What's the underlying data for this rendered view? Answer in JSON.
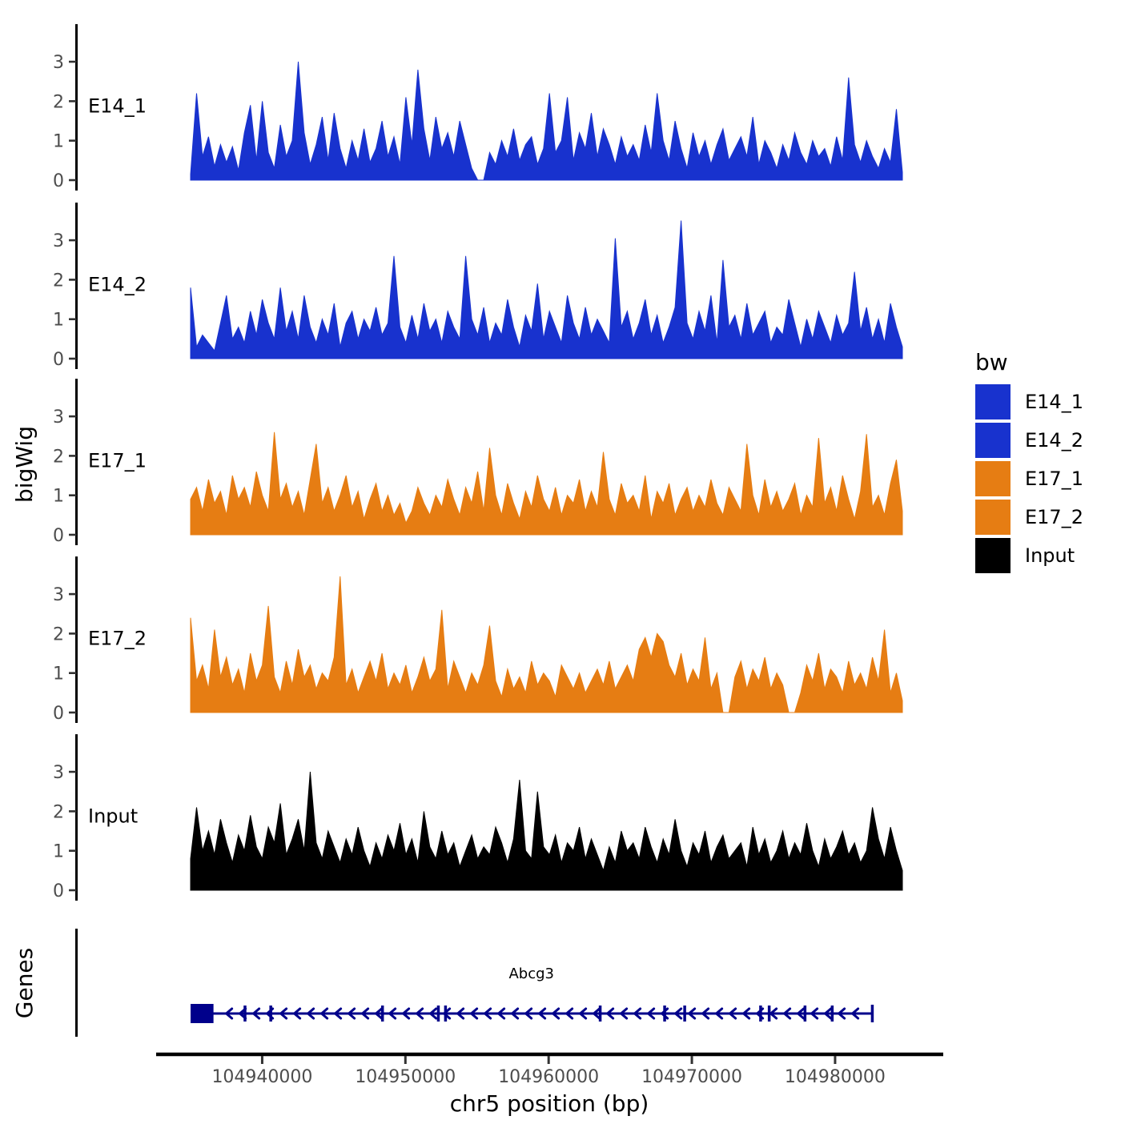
{
  "chart_data": {
    "type": "area",
    "description": "bigWig coverage tracks over genomic interval with gene model",
    "xlabel": "chr5 position (bp)",
    "ylabel": "bigWig",
    "x_range": [
      104935000,
      104984700
    ],
    "x_ticks": [
      104940000,
      104950000,
      104960000,
      104970000,
      104980000
    ],
    "x_tick_labels": [
      "104940000",
      "104950000",
      "104960000",
      "104970000",
      "104980000"
    ],
    "y_ticks": [
      0,
      1,
      2,
      3
    ],
    "ylim": [
      0,
      3.6
    ],
    "axis_text_color": "#4D4D4D",
    "axis_line_color": "#000000",
    "tracks": [
      {
        "name": "E14_1",
        "color": "#1832CE",
        "values": [
          0.15,
          2.2,
          0.6,
          1.1,
          0.35,
          0.9,
          0.45,
          0.85,
          0.25,
          1.2,
          1.9,
          0.5,
          2.0,
          0.7,
          0.3,
          1.4,
          0.6,
          1.0,
          3.0,
          1.2,
          0.4,
          0.9,
          1.6,
          0.5,
          1.7,
          0.8,
          0.3,
          1.0,
          0.5,
          1.3,
          0.45,
          0.8,
          1.5,
          0.6,
          1.1,
          0.4,
          2.1,
          0.9,
          2.8,
          1.3,
          0.5,
          1.6,
          0.8,
          1.2,
          0.6,
          1.5,
          0.9,
          0.3,
          0.0,
          0.0,
          0.7,
          0.4,
          1.0,
          0.6,
          1.3,
          0.5,
          0.9,
          1.1,
          0.4,
          0.8,
          2.2,
          0.7,
          1.0,
          2.1,
          0.5,
          1.2,
          0.8,
          1.7,
          0.6,
          1.3,
          0.9,
          0.4,
          1.1,
          0.6,
          0.9,
          0.5,
          1.4,
          0.7,
          2.2,
          1.0,
          0.5,
          1.5,
          0.8,
          0.3,
          1.2,
          0.6,
          1.0,
          0.4,
          0.9,
          1.3,
          0.5,
          0.8,
          1.1,
          0.6,
          1.6,
          0.4,
          1.0,
          0.7,
          0.3,
          0.9,
          0.5,
          1.2,
          0.7,
          0.4,
          1.0,
          0.6,
          0.8,
          0.35,
          1.1,
          0.5,
          2.6,
          0.9,
          0.45,
          1.0,
          0.6,
          0.3,
          0.8,
          0.45,
          1.8,
          0.2
        ]
      },
      {
        "name": "E14_2",
        "color": "#1832CE",
        "values": [
          1.8,
          0.3,
          0.6,
          0.4,
          0.2,
          0.9,
          1.6,
          0.5,
          0.8,
          0.4,
          1.2,
          0.6,
          1.5,
          0.9,
          0.5,
          1.8,
          0.7,
          1.2,
          0.5,
          1.6,
          0.8,
          0.4,
          1.0,
          0.6,
          1.4,
          0.3,
          0.9,
          1.2,
          0.5,
          1.0,
          0.7,
          1.3,
          0.6,
          0.9,
          2.6,
          0.8,
          0.4,
          1.1,
          0.5,
          1.4,
          0.7,
          1.0,
          0.4,
          1.2,
          0.8,
          0.5,
          2.6,
          1.0,
          0.6,
          1.3,
          0.4,
          0.9,
          0.6,
          1.5,
          0.8,
          0.3,
          1.1,
          0.7,
          1.9,
          0.5,
          1.2,
          0.8,
          0.4,
          1.6,
          0.9,
          0.5,
          1.3,
          0.6,
          1.0,
          0.7,
          0.4,
          3.05,
          0.8,
          1.2,
          0.5,
          0.9,
          1.5,
          0.6,
          1.1,
          0.4,
          0.8,
          1.3,
          3.5,
          0.9,
          0.5,
          1.2,
          0.7,
          1.6,
          0.4,
          2.5,
          0.8,
          1.1,
          0.5,
          1.4,
          0.6,
          0.9,
          1.2,
          0.4,
          0.8,
          0.6,
          1.5,
          0.9,
          0.3,
          1.0,
          0.5,
          1.2,
          0.8,
          0.4,
          1.1,
          0.6,
          0.9,
          2.2,
          0.7,
          1.3,
          0.5,
          1.0,
          0.4,
          1.4,
          0.8,
          0.3
        ]
      },
      {
        "name": "E17_1",
        "color": "#E67D13",
        "values": [
          0.9,
          1.2,
          0.6,
          1.4,
          0.8,
          1.1,
          0.5,
          1.5,
          0.9,
          1.2,
          0.7,
          1.6,
          1.0,
          0.6,
          2.6,
          0.9,
          1.3,
          0.7,
          1.1,
          0.5,
          1.4,
          2.3,
          0.8,
          1.2,
          0.6,
          1.0,
          1.5,
          0.7,
          1.1,
          0.4,
          0.9,
          1.3,
          0.6,
          1.0,
          0.5,
          0.8,
          0.3,
          0.6,
          1.2,
          0.8,
          0.5,
          1.0,
          0.7,
          1.4,
          0.9,
          0.5,
          1.2,
          0.8,
          1.6,
          0.6,
          2.2,
          1.0,
          0.5,
          1.3,
          0.8,
          0.4,
          1.1,
          0.7,
          1.5,
          0.9,
          0.6,
          1.2,
          0.5,
          1.0,
          0.8,
          1.4,
          0.6,
          1.1,
          0.7,
          2.1,
          0.9,
          0.5,
          1.3,
          0.8,
          1.0,
          0.6,
          1.5,
          0.4,
          1.1,
          0.8,
          1.3,
          0.5,
          0.9,
          1.2,
          0.6,
          1.0,
          0.7,
          1.4,
          0.8,
          0.5,
          1.2,
          0.9,
          0.6,
          2.3,
          1.0,
          0.5,
          1.4,
          0.7,
          1.1,
          0.6,
          0.9,
          1.3,
          0.5,
          1.0,
          0.7,
          2.45,
          0.8,
          1.2,
          0.6,
          1.5,
          0.9,
          0.4,
          1.1,
          2.55,
          0.7,
          1.0,
          0.5,
          1.3,
          1.9,
          0.6
        ]
      },
      {
        "name": "E17_2",
        "color": "#E67D13",
        "values": [
          2.4,
          0.8,
          1.2,
          0.6,
          2.1,
          0.9,
          1.4,
          0.7,
          1.1,
          0.5,
          1.5,
          0.8,
          1.2,
          2.7,
          0.9,
          0.5,
          1.3,
          0.7,
          1.6,
          0.9,
          1.2,
          0.6,
          1.0,
          0.8,
          1.4,
          3.45,
          0.7,
          1.1,
          0.5,
          0.9,
          1.3,
          0.8,
          1.5,
          0.6,
          1.0,
          0.7,
          1.2,
          0.5,
          0.9,
          1.4,
          0.8,
          1.1,
          2.6,
          0.6,
          1.3,
          0.9,
          0.5,
          1.0,
          0.7,
          1.2,
          2.2,
          0.8,
          0.4,
          1.1,
          0.6,
          0.9,
          0.5,
          1.3,
          0.7,
          1.0,
          0.8,
          0.4,
          1.2,
          0.9,
          0.6,
          1.0,
          0.5,
          0.8,
          1.1,
          0.7,
          1.3,
          0.6,
          0.9,
          1.2,
          0.8,
          1.6,
          1.9,
          1.4,
          2.0,
          1.8,
          1.2,
          0.9,
          1.5,
          0.7,
          1.1,
          0.8,
          1.9,
          0.6,
          1.0,
          0.0,
          0.0,
          0.9,
          1.3,
          0.6,
          1.1,
          0.8,
          1.4,
          0.6,
          1.0,
          0.7,
          0.0,
          0.0,
          0.5,
          1.2,
          0.8,
          1.5,
          0.6,
          1.1,
          0.9,
          0.5,
          1.3,
          0.7,
          1.0,
          0.6,
          1.4,
          0.8,
          2.1,
          0.5,
          1.0,
          0.3
        ]
      },
      {
        "name": "Input",
        "color": "#000000",
        "values": [
          0.8,
          2.1,
          1.0,
          1.5,
          0.9,
          1.8,
          1.2,
          0.7,
          1.4,
          1.0,
          1.9,
          1.1,
          0.8,
          1.6,
          1.2,
          2.2,
          0.9,
          1.3,
          1.8,
          1.0,
          3.0,
          1.2,
          0.8,
          1.5,
          1.1,
          0.7,
          1.3,
          0.9,
          1.6,
          1.0,
          0.6,
          1.2,
          0.8,
          1.4,
          1.0,
          1.7,
          0.9,
          1.3,
          0.7,
          2.0,
          1.1,
          0.8,
          1.5,
          0.9,
          1.2,
          0.6,
          1.0,
          1.4,
          0.8,
          1.1,
          0.9,
          1.6,
          1.2,
          0.7,
          1.3,
          2.8,
          1.0,
          0.8,
          2.5,
          1.1,
          0.9,
          1.4,
          0.7,
          1.2,
          1.0,
          1.6,
          0.8,
          1.3,
          0.9,
          0.5,
          1.1,
          0.7,
          1.5,
          1.0,
          1.2,
          0.8,
          1.6,
          1.1,
          0.7,
          1.3,
          0.9,
          1.8,
          1.0,
          0.6,
          1.2,
          0.9,
          1.5,
          0.7,
          1.1,
          1.4,
          0.8,
          1.0,
          1.2,
          0.6,
          1.6,
          0.9,
          1.3,
          0.7,
          1.0,
          1.5,
          0.8,
          1.2,
          0.9,
          1.7,
          1.0,
          0.6,
          1.3,
          0.8,
          1.1,
          1.5,
          0.9,
          1.2,
          0.7,
          1.0,
          2.1,
          1.3,
          0.8,
          1.6,
          1.0,
          0.5
        ]
      }
    ],
    "genes_track": {
      "label": "Genes",
      "gene": {
        "name": "Abcg3",
        "strand": "-",
        "color": "#00008B",
        "start": 104935000,
        "end": 104982600,
        "utr_box": [
          104935000,
          104936600
        ],
        "exons": [
          104938800,
          104940600,
          104948400,
          104952300,
          104952800,
          104963600,
          104968100,
          104969500,
          104974800,
          104975400,
          104977900,
          104979800
        ]
      }
    },
    "legend": {
      "title": "bw",
      "entries": [
        {
          "label": "E14_1",
          "color": "#1832CE"
        },
        {
          "label": "E14_2",
          "color": "#1832CE"
        },
        {
          "label": "E17_1",
          "color": "#E67D13"
        },
        {
          "label": "E17_2",
          "color": "#E67D13"
        },
        {
          "label": "Input",
          "color": "#000000"
        }
      ]
    }
  }
}
